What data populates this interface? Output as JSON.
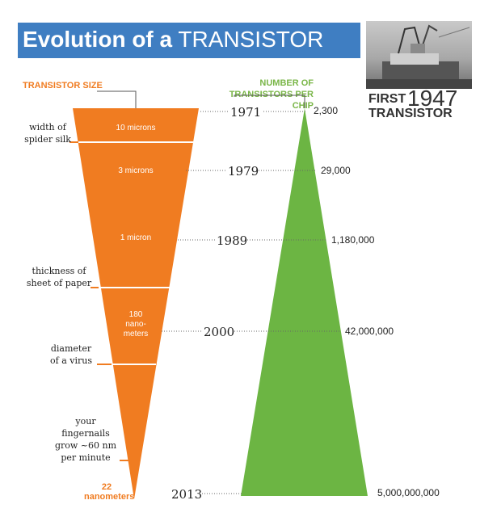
{
  "title": {
    "bold": "Evolution of a",
    "rest": "TRANSISTOR"
  },
  "first": {
    "word1": "FIRST",
    "year": "1947",
    "word2": "TRANSISTOR"
  },
  "headers": {
    "size": "TRANSISTOR SIZE",
    "count": "NUMBER OF TRANSISTORS PER CHIP"
  },
  "size_labels": {
    "s1": "10 microns",
    "s2": "3 microns",
    "s3": "1 micron",
    "s4": "180 nano- meters",
    "s5": "22 nanometers"
  },
  "comparisons": {
    "c1": "width of spider silk",
    "c2": "thickness of sheet of paper",
    "c3": "diameter of a virus",
    "c4": "your fingernails grow ~60 nm per minute"
  },
  "years": {
    "y1": "1971",
    "y2": "1979",
    "y3": "1989",
    "y4": "2000",
    "y5": "2013"
  },
  "counts": {
    "n1": "2,300",
    "n2": "29,000",
    "n3": "1,180,000",
    "n4": "42,000,000",
    "n5": "5,000,000,000"
  },
  "colors": {
    "orange": "#f07c21",
    "green": "#6cb543",
    "blue": "#3f7ec2"
  }
}
